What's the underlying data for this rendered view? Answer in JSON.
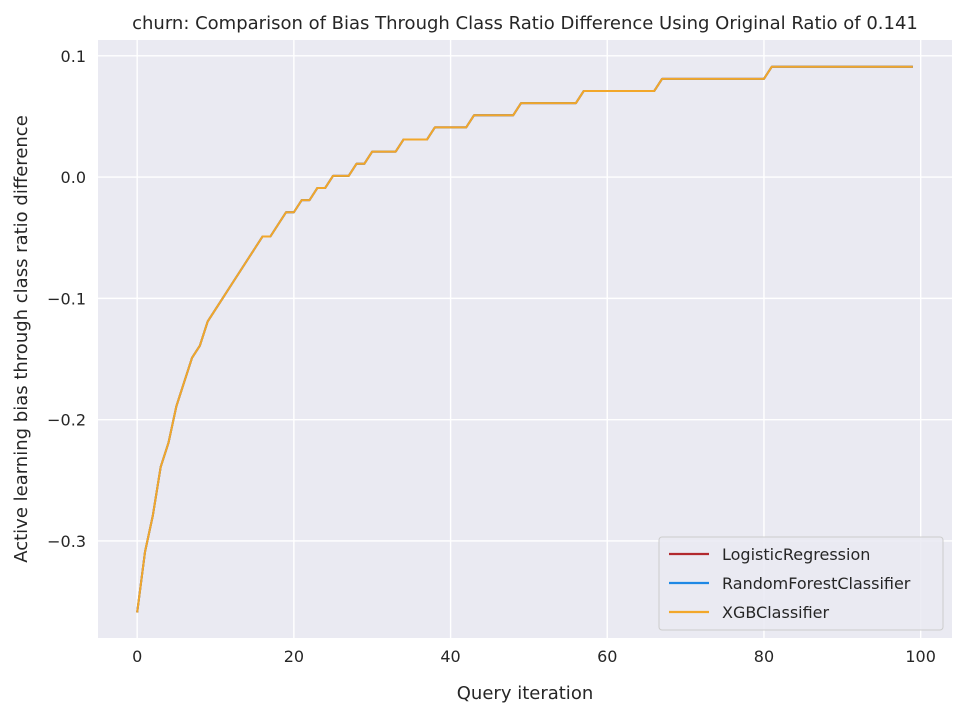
{
  "chart_data": {
    "type": "line",
    "title": "churn: Comparison of Bias Through Class Ratio Difference Using Original Ratio of 0.141",
    "xlabel": "Query iteration",
    "ylabel": "Active learning bias through class ratio difference",
    "xlim": [
      -5,
      104
    ],
    "ylim": [
      -0.38,
      0.113
    ],
    "x_ticks": [
      0,
      20,
      40,
      60,
      80,
      100
    ],
    "x_tick_labels": [
      "0",
      "20",
      "40",
      "60",
      "80",
      "100"
    ],
    "y_ticks": [
      -0.3,
      -0.2,
      -0.1,
      0.0,
      0.1
    ],
    "y_tick_labels": [
      "−0.3",
      "−0.2",
      "−0.1",
      "0.0",
      "0.1"
    ],
    "grid": true,
    "legend_position": "bottom-right",
    "x": [
      0,
      1,
      2,
      3,
      4,
      5,
      6,
      7,
      8,
      9,
      10,
      11,
      12,
      13,
      14,
      15,
      16,
      17,
      18,
      19,
      20,
      21,
      22,
      23,
      24,
      25,
      26,
      27,
      28,
      29,
      30,
      31,
      32,
      33,
      34,
      35,
      36,
      37,
      38,
      39,
      40,
      41,
      42,
      43,
      44,
      45,
      46,
      47,
      48,
      49,
      50,
      51,
      52,
      53,
      54,
      55,
      56,
      57,
      58,
      59,
      60,
      61,
      62,
      63,
      64,
      65,
      66,
      67,
      68,
      69,
      70,
      71,
      72,
      73,
      74,
      75,
      76,
      77,
      78,
      79,
      80,
      81,
      82,
      83,
      84,
      85,
      86,
      87,
      88,
      89,
      90,
      91,
      92,
      93,
      94,
      95,
      96,
      97,
      98,
      99
    ],
    "series": [
      {
        "name": "LogisticRegression",
        "color": "#b2292e",
        "values": [
          -0.359,
          -0.309,
          -0.279,
          -0.239,
          -0.219,
          -0.189,
          -0.169,
          -0.149,
          -0.139,
          -0.119,
          -0.109,
          -0.099,
          -0.089,
          -0.079,
          -0.069,
          -0.059,
          -0.049,
          -0.049,
          -0.039,
          -0.029,
          -0.029,
          -0.019,
          -0.019,
          -0.009,
          -0.009,
          0.001,
          0.001,
          0.001,
          0.011,
          0.011,
          0.021,
          0.021,
          0.021,
          0.021,
          0.031,
          0.031,
          0.031,
          0.031,
          0.041,
          0.041,
          0.041,
          0.041,
          0.041,
          0.051,
          0.051,
          0.051,
          0.051,
          0.051,
          0.051,
          0.061,
          0.061,
          0.061,
          0.061,
          0.061,
          0.061,
          0.061,
          0.061,
          0.071,
          0.071,
          0.071,
          0.071,
          0.071,
          0.071,
          0.071,
          0.071,
          0.071,
          0.071,
          0.081,
          0.081,
          0.081,
          0.081,
          0.081,
          0.081,
          0.081,
          0.081,
          0.081,
          0.081,
          0.081,
          0.081,
          0.081,
          0.081,
          0.091,
          0.091,
          0.091,
          0.091,
          0.091,
          0.091,
          0.091,
          0.091,
          0.091,
          0.091,
          0.091,
          0.091,
          0.091,
          0.091,
          0.091,
          0.091,
          0.091,
          0.091,
          0.091
        ]
      },
      {
        "name": "RandomForestClassifier",
        "color": "#1e88e5",
        "values": [
          -0.359,
          -0.309,
          -0.279,
          -0.239,
          -0.219,
          -0.189,
          -0.169,
          -0.149,
          -0.139,
          -0.119,
          -0.109,
          -0.099,
          -0.089,
          -0.079,
          -0.069,
          -0.059,
          -0.049,
          -0.049,
          -0.039,
          -0.029,
          -0.029,
          -0.019,
          -0.019,
          -0.009,
          -0.009,
          0.001,
          0.001,
          0.001,
          0.011,
          0.011,
          0.021,
          0.021,
          0.021,
          0.021,
          0.031,
          0.031,
          0.031,
          0.031,
          0.041,
          0.041,
          0.041,
          0.041,
          0.041,
          0.051,
          0.051,
          0.051,
          0.051,
          0.051,
          0.051,
          0.061,
          0.061,
          0.061,
          0.061,
          0.061,
          0.061,
          0.061,
          0.061,
          0.071,
          0.071,
          0.071,
          0.071,
          0.071,
          0.071,
          0.071,
          0.071,
          0.071,
          0.071,
          0.081,
          0.081,
          0.081,
          0.081,
          0.081,
          0.081,
          0.081,
          0.081,
          0.081,
          0.081,
          0.081,
          0.081,
          0.081,
          0.081,
          0.091,
          0.091,
          0.091,
          0.091,
          0.091,
          0.091,
          0.091,
          0.091,
          0.091,
          0.091,
          0.091,
          0.091,
          0.091,
          0.091,
          0.091,
          0.091,
          0.091,
          0.091,
          0.091
        ]
      },
      {
        "name": "XGBClassifier",
        "color": "#f2a72a",
        "values": [
          -0.359,
          -0.309,
          -0.279,
          -0.239,
          -0.219,
          -0.189,
          -0.169,
          -0.149,
          -0.139,
          -0.119,
          -0.109,
          -0.099,
          -0.089,
          -0.079,
          -0.069,
          -0.059,
          -0.049,
          -0.049,
          -0.039,
          -0.029,
          -0.029,
          -0.019,
          -0.019,
          -0.009,
          -0.009,
          0.001,
          0.001,
          0.001,
          0.011,
          0.011,
          0.021,
          0.021,
          0.021,
          0.021,
          0.031,
          0.031,
          0.031,
          0.031,
          0.041,
          0.041,
          0.041,
          0.041,
          0.041,
          0.051,
          0.051,
          0.051,
          0.051,
          0.051,
          0.051,
          0.061,
          0.061,
          0.061,
          0.061,
          0.061,
          0.061,
          0.061,
          0.061,
          0.071,
          0.071,
          0.071,
          0.071,
          0.071,
          0.071,
          0.071,
          0.071,
          0.071,
          0.071,
          0.081,
          0.081,
          0.081,
          0.081,
          0.081,
          0.081,
          0.081,
          0.081,
          0.081,
          0.081,
          0.081,
          0.081,
          0.081,
          0.081,
          0.091,
          0.091,
          0.091,
          0.091,
          0.091,
          0.091,
          0.091,
          0.091,
          0.091,
          0.091,
          0.091,
          0.091,
          0.091,
          0.091,
          0.091,
          0.091,
          0.091,
          0.091,
          0.091
        ]
      }
    ],
    "style": {
      "plot_background": "#eaeaf2",
      "grid_color": "#ffffff",
      "legend_frame": "#cccccc",
      "text_color": "#262626"
    }
  }
}
